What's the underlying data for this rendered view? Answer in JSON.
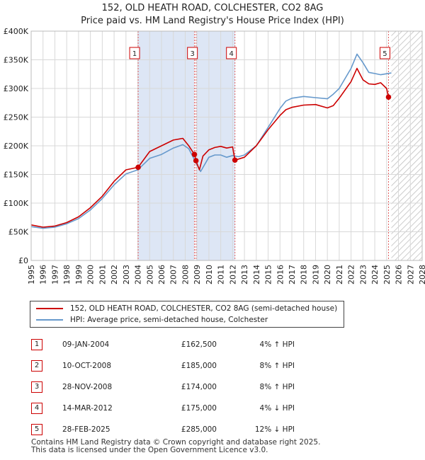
{
  "title": {
    "line1": "152, OLD HEATH ROAD, COLCHESTER, CO2 8AG",
    "line2": "Price paid vs. HM Land Registry's House Price Index (HPI)"
  },
  "colors": {
    "property": "#cc0000",
    "hpi": "#6699cc",
    "shade": "#dde6f5",
    "marker_line": "#e06060"
  },
  "chart_data": {
    "type": "line",
    "xlim": [
      1995,
      2028
    ],
    "ylim": [
      0,
      400000
    ],
    "y_ticks": [
      0,
      50000,
      100000,
      150000,
      200000,
      250000,
      300000,
      350000,
      400000
    ],
    "y_tick_labels": [
      "£0",
      "£50K",
      "£100K",
      "£150K",
      "£200K",
      "£250K",
      "£300K",
      "£350K",
      "£400K"
    ],
    "x_ticks": [
      1995,
      1996,
      1997,
      1998,
      1999,
      2000,
      2001,
      2002,
      2003,
      2004,
      2005,
      2006,
      2007,
      2008,
      2009,
      2010,
      2011,
      2012,
      2013,
      2014,
      2015,
      2016,
      2017,
      2018,
      2019,
      2020,
      2021,
      2022,
      2023,
      2024,
      2025,
      2026,
      2027,
      2028
    ],
    "shaded_ranges": [
      [
        2004.03,
        2008.78
      ],
      [
        2008.91,
        2012.2
      ]
    ],
    "hatched_from": 2025.4,
    "series": [
      {
        "name": "152, OLD HEATH ROAD, COLCHESTER, CO2 8AG (semi-detached house)",
        "x": [
          1995,
          1996,
          1997,
          1998,
          1999,
          2000,
          2001,
          2002,
          2003,
          2004.03,
          2005,
          2006,
          2007,
          2007.8,
          2008.3,
          2008.78,
          2008.91,
          2009.2,
          2009.5,
          2010,
          2010.5,
          2011,
          2011.5,
          2012.0,
          2012.2,
          2013,
          2014,
          2015,
          2016,
          2016.5,
          2017,
          2018,
          2019,
          2020,
          2020.5,
          2021,
          2022,
          2022.5,
          2023,
          2023.5,
          2024,
          2024.5,
          2025.0,
          2025.16
        ],
        "y": [
          62000,
          58000,
          60000,
          66000,
          76000,
          92000,
          112000,
          138000,
          158000,
          162500,
          190000,
          200000,
          210000,
          213000,
          200000,
          185000,
          174000,
          158000,
          182000,
          193000,
          197000,
          199000,
          196000,
          198000,
          175000,
          180000,
          200000,
          228000,
          253000,
          263000,
          267000,
          271000,
          272000,
          266000,
          270000,
          283000,
          312000,
          335000,
          315000,
          308000,
          307000,
          310000,
          300000,
          285000
        ]
      },
      {
        "name": "HPI: Average price, semi-detached house, Colchester",
        "x": [
          1995,
          1996,
          1997,
          1998,
          1999,
          2000,
          2001,
          2002,
          2003,
          2004,
          2005,
          2006,
          2007,
          2007.8,
          2008.3,
          2008.8,
          2009.3,
          2010,
          2010.5,
          2011,
          2011.5,
          2012,
          2012.5,
          2013,
          2014,
          2015,
          2016,
          2016.5,
          2017,
          2018,
          2019,
          2020,
          2020.5,
          2021,
          2022,
          2022.5,
          2023,
          2023.5,
          2024,
          2024.5,
          2025.4
        ],
        "y": [
          59000,
          56000,
          58000,
          64000,
          73000,
          88000,
          108000,
          132000,
          151000,
          158000,
          178000,
          185000,
          196000,
          202000,
          195000,
          175000,
          155000,
          180000,
          184000,
          184000,
          180000,
          183000,
          181000,
          184000,
          200000,
          232000,
          265000,
          278000,
          283000,
          286000,
          284000,
          282000,
          290000,
          300000,
          335000,
          360000,
          345000,
          328000,
          326000,
          324000,
          327000
        ]
      }
    ],
    "sales": [
      {
        "label": "1",
        "x": 2004.03,
        "y": 162500
      },
      {
        "label": "2",
        "x": 2008.78,
        "y": 185000
      },
      {
        "label": "3",
        "x": 2008.91,
        "y": 174000
      },
      {
        "label": "4",
        "x": 2012.2,
        "y": 175000
      },
      {
        "label": "5",
        "x": 2025.16,
        "y": 285000
      }
    ],
    "box_labels": [
      {
        "label": "1",
        "x": 2004.03
      },
      {
        "label": "3",
        "x": 2008.91
      },
      {
        "label": "4",
        "x": 2012.2
      },
      {
        "label": "5",
        "x": 2025.16
      }
    ]
  },
  "legend": {
    "property": "152, OLD HEATH ROAD, COLCHESTER, CO2 8AG (semi-detached house)",
    "hpi": "HPI: Average price, semi-detached house, Colchester"
  },
  "table": [
    {
      "num": "1",
      "date": "09-JAN-2004",
      "price": "£162,500",
      "pct": "4% ↑ HPI"
    },
    {
      "num": "2",
      "date": "10-OCT-2008",
      "price": "£185,000",
      "pct": "8% ↑ HPI"
    },
    {
      "num": "3",
      "date": "28-NOV-2008",
      "price": "£174,000",
      "pct": "8% ↑ HPI"
    },
    {
      "num": "4",
      "date": "14-MAR-2012",
      "price": "£175,000",
      "pct": "4% ↓ HPI"
    },
    {
      "num": "5",
      "date": "28-FEB-2025",
      "price": "£285,000",
      "pct": "12% ↓ HPI"
    }
  ],
  "footer": {
    "line1": "Contains HM Land Registry data © Crown copyright and database right 2025.",
    "line2": "This data is licensed under the Open Government Licence v3.0."
  }
}
